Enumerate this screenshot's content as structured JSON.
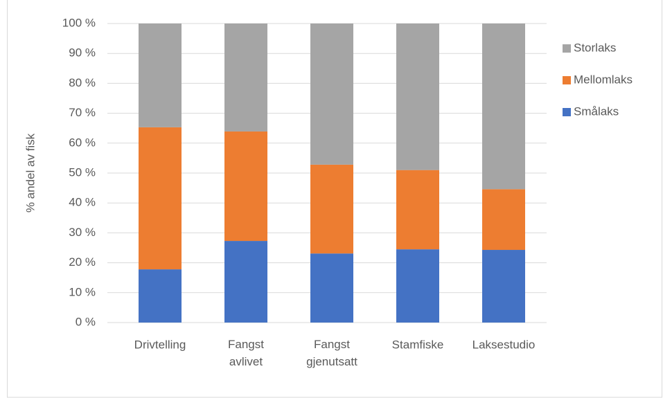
{
  "chart_data": {
    "type": "stacked_bar",
    "y_label": "% andel av fisk",
    "categories": [
      "Drivtelling",
      "Fangst avlivet",
      "Fangst gjenutsatt",
      "Stamfiske",
      "Laksestudio"
    ],
    "series": [
      {
        "name": "Smålaks",
        "color": "#4472c4",
        "values": [
          17.8,
          27.3,
          23.1,
          24.5,
          24.3
        ]
      },
      {
        "name": "Mellomlaks",
        "color": "#ed7d31",
        "values": [
          47.5,
          36.6,
          29.7,
          26.5,
          20.3
        ]
      },
      {
        "name": "Storlaks",
        "color": "#a5a5a5",
        "values": [
          34.7,
          36.1,
          47.2,
          49.0,
          55.4
        ]
      }
    ],
    "ylim": [
      0,
      100
    ],
    "yticks": [
      {
        "value": 0,
        "label": "0 %"
      },
      {
        "value": 10,
        "label": "10 %"
      },
      {
        "value": 20,
        "label": "20 %"
      },
      {
        "value": 30,
        "label": "30 %"
      },
      {
        "value": 40,
        "label": "40 %"
      },
      {
        "value": 50,
        "label": "50 %"
      },
      {
        "value": 60,
        "label": "60 %"
      },
      {
        "value": 70,
        "label": "70 %"
      },
      {
        "value": 80,
        "label": "80 %"
      },
      {
        "value": 90,
        "label": "90 %"
      },
      {
        "value": 100,
        "label": "100 %"
      }
    ],
    "grid": true,
    "legend": "right"
  }
}
